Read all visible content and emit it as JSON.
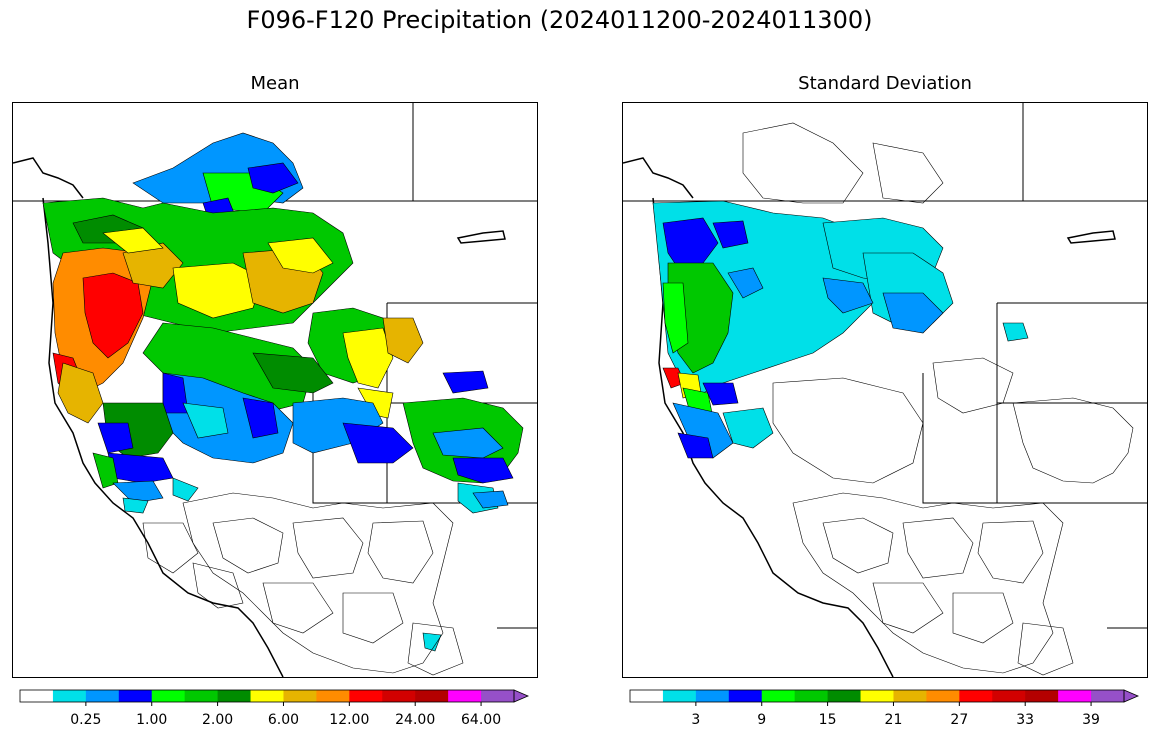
{
  "suptitle": "F096-F120 Precipitation (2024011200-2024011300)",
  "panels": {
    "mean": {
      "title": "Mean",
      "colorbar": {
        "colors": [
          "#ffffff",
          "#00e0e8",
          "#0096ff",
          "#0000ff",
          "#00ff00",
          "#00c800",
          "#008c00",
          "#ffff00",
          "#e6b400",
          "#ff8c00",
          "#ff0000",
          "#d20000",
          "#b40000",
          "#ff00ff",
          "#9650c8"
        ],
        "tick_labels": [
          "0.25",
          "1.00",
          "2.00",
          "6.00",
          "12.00",
          "24.00",
          "64.00"
        ],
        "extend": "max"
      }
    },
    "std": {
      "title": "Standard Deviation",
      "colorbar": {
        "colors": [
          "#ffffff",
          "#00e0e8",
          "#0096ff",
          "#0000ff",
          "#00ff00",
          "#00c800",
          "#008c00",
          "#ffff00",
          "#e6b400",
          "#ff8c00",
          "#ff0000",
          "#d20000",
          "#b40000",
          "#ff00ff",
          "#9650c8"
        ],
        "tick_labels": [
          "3",
          "9",
          "15",
          "21",
          "27",
          "33",
          "39"
        ],
        "extend": "max"
      }
    }
  }
}
